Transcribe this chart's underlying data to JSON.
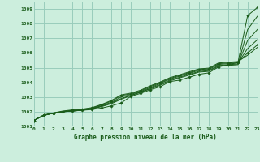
{
  "background_color": "#cceedd",
  "grid_color": "#99ccbb",
  "line_color": "#1a5c1a",
  "title": "Graphe pression niveau de la mer (hPa)",
  "ylabel_ticks": [
    1001,
    1002,
    1003,
    1004,
    1005,
    1006,
    1007,
    1008,
    1009
  ],
  "xlabel_ticks": [
    0,
    1,
    2,
    3,
    4,
    5,
    6,
    7,
    8,
    9,
    10,
    11,
    12,
    13,
    14,
    15,
    16,
    17,
    18,
    19,
    20,
    21,
    22,
    23
  ],
  "xlim": [
    0,
    23
  ],
  "ylim": [
    1001.0,
    1009.5
  ],
  "lines": [
    {
      "x": [
        0,
        1,
        2,
        3,
        4,
        5,
        6,
        7,
        8,
        9,
        10,
        11,
        12,
        13,
        14,
        15,
        16,
        17,
        18,
        19,
        20,
        21,
        22,
        23
      ],
      "y": [
        1001.4,
        1001.75,
        1001.9,
        1002.0,
        1002.05,
        1002.1,
        1002.15,
        1002.25,
        1002.4,
        1002.6,
        1003.05,
        1003.25,
        1003.5,
        1003.7,
        1004.05,
        1004.15,
        1004.35,
        1004.55,
        1004.65,
        1005.05,
        1005.2,
        1005.35,
        1008.55,
        1009.1
      ],
      "marker": true,
      "marker_style": "D"
    },
    {
      "x": [
        0,
        1,
        2,
        3,
        4,
        5,
        6,
        7,
        8,
        9,
        10,
        11,
        12,
        13,
        14,
        15,
        16,
        17,
        18,
        19,
        20,
        21,
        22,
        23
      ],
      "y": [
        1001.4,
        1001.75,
        1001.9,
        1002.0,
        1002.05,
        1002.1,
        1002.2,
        1002.35,
        1002.55,
        1002.85,
        1003.1,
        1003.35,
        1003.55,
        1003.8,
        1004.1,
        1004.3,
        1004.5,
        1004.7,
        1004.75,
        1005.1,
        1005.15,
        1005.2,
        1007.6,
        1008.5
      ],
      "marker": false,
      "marker_style": ""
    },
    {
      "x": [
        0,
        1,
        2,
        3,
        4,
        5,
        6,
        7,
        8,
        9,
        10,
        11,
        12,
        13,
        14,
        15,
        16,
        17,
        18,
        19,
        20,
        21,
        22,
        23
      ],
      "y": [
        1001.4,
        1001.75,
        1001.9,
        1002.0,
        1002.05,
        1002.1,
        1002.2,
        1002.38,
        1002.6,
        1002.9,
        1003.12,
        1003.32,
        1003.6,
        1003.85,
        1004.15,
        1004.35,
        1004.55,
        1004.75,
        1004.8,
        1005.15,
        1005.2,
        1005.25,
        1006.85,
        1007.6
      ],
      "marker": false,
      "marker_style": ""
    },
    {
      "x": [
        0,
        1,
        2,
        3,
        4,
        5,
        6,
        7,
        8,
        9,
        10,
        11,
        12,
        13,
        14,
        15,
        16,
        17,
        18,
        19,
        20,
        21,
        22,
        23
      ],
      "y": [
        1001.4,
        1001.75,
        1001.9,
        1002.0,
        1002.08,
        1002.12,
        1002.22,
        1002.42,
        1002.65,
        1003.0,
        1003.18,
        1003.38,
        1003.65,
        1003.92,
        1004.22,
        1004.42,
        1004.62,
        1004.82,
        1004.87,
        1005.22,
        1005.27,
        1005.32,
        1006.3,
        1006.9
      ],
      "marker": false,
      "marker_style": ""
    },
    {
      "x": [
        0,
        1,
        2,
        3,
        4,
        5,
        6,
        7,
        8,
        9,
        10,
        11,
        12,
        13,
        14,
        15,
        16,
        17,
        18,
        19,
        20,
        21,
        22,
        23
      ],
      "y": [
        1001.4,
        1001.75,
        1001.9,
        1002.02,
        1002.1,
        1002.15,
        1002.25,
        1002.47,
        1002.72,
        1003.1,
        1003.22,
        1003.42,
        1003.72,
        1003.97,
        1004.27,
        1004.47,
        1004.67,
        1004.87,
        1004.92,
        1005.27,
        1005.32,
        1005.37,
        1006.0,
        1006.55
      ],
      "marker": true,
      "marker_style": "D"
    },
    {
      "x": [
        0,
        1,
        2,
        3,
        4,
        5,
        6,
        7,
        8,
        9,
        10,
        11,
        12,
        13,
        14,
        15,
        16,
        17,
        18,
        19,
        20,
        21,
        22,
        23
      ],
      "y": [
        1001.4,
        1001.78,
        1001.92,
        1002.05,
        1002.13,
        1002.18,
        1002.28,
        1002.5,
        1002.77,
        1003.15,
        1003.27,
        1003.47,
        1003.77,
        1004.02,
        1004.32,
        1004.52,
        1004.72,
        1004.92,
        1004.97,
        1005.32,
        1005.37,
        1005.42,
        1005.85,
        1006.38
      ],
      "marker": false,
      "marker_style": ""
    }
  ]
}
